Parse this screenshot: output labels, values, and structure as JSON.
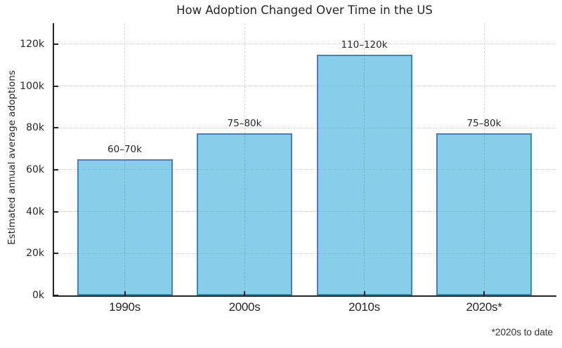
{
  "chart_data": {
    "type": "bar",
    "title": "How Adoption Changed Over Time in the US",
    "xlabel": "",
    "ylabel": "Estimated annual average adoptions",
    "categories": [
      "1990s",
      "2000s",
      "2010s",
      "2020s*"
    ],
    "values": [
      65,
      77.5,
      115,
      77.5
    ],
    "value_unit": "thousands of adoptions per year",
    "bar_labels": [
      "60–70k",
      "75–80k",
      "110–120k",
      "75–80k"
    ],
    "yticks": [
      0,
      20,
      40,
      60,
      80,
      100,
      120
    ],
    "ytick_labels": [
      "0k",
      "20k",
      "40k",
      "60k",
      "80k",
      "100k",
      "120k"
    ],
    "ylim": [
      0,
      130
    ],
    "grid": true,
    "legend_position": "none",
    "footnote": "*2020s to date",
    "colors": {
      "bar_fill": "#87CEEB",
      "bar_edge": "#4682B4",
      "grid": "#d9d9d9",
      "axis": "#262626",
      "text": "#262626"
    }
  }
}
